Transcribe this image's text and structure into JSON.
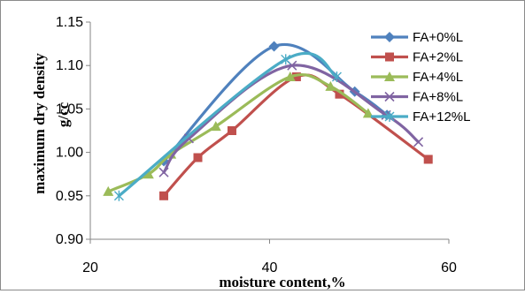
{
  "chart_data": {
    "type": "line",
    "title": "",
    "xlabel": "moisture content,%",
    "ylabel": "maximum dry density g/cc",
    "ylabel_lines": [
      "maximum dry density",
      "g/cc"
    ],
    "xlim": [
      20,
      60
    ],
    "ylim": [
      0.9,
      1.15
    ],
    "x_ticks": [
      20,
      40,
      60
    ],
    "x_tick_labels": [
      "20",
      "40",
      "60"
    ],
    "y_ticks": [
      0.9,
      0.95,
      1.0,
      1.05,
      1.1,
      1.15
    ],
    "y_tick_labels": [
      "0.90",
      "0.95",
      "1.00",
      "1.05",
      "1.10",
      "1.15"
    ],
    "grid": false,
    "legend_position": "right",
    "series": [
      {
        "name": "FA+0%L",
        "color": "#4F81BD",
        "marker": "diamond",
        "x": [
          28.2,
          40.5,
          49.5,
          53.1
        ],
        "y": [
          0.99,
          1.122,
          1.07,
          1.043
        ]
      },
      {
        "name": "FA+2%L",
        "color": "#C0504D",
        "marker": "square",
        "x": [
          28.2,
          32.0,
          35.8,
          43.0,
          47.8,
          57.7
        ],
        "y": [
          0.95,
          0.994,
          1.025,
          1.087,
          1.067,
          0.992
        ]
      },
      {
        "name": "FA+4%L",
        "color": "#9BBB59",
        "marker": "triangle",
        "x": [
          22.0,
          26.5,
          29.0,
          34.0,
          42.3,
          46.8,
          51.0
        ],
        "y": [
          0.955,
          0.975,
          0.998,
          1.03,
          1.087,
          1.076,
          1.045
        ]
      },
      {
        "name": "FA+8%L",
        "color": "#8064A2",
        "marker": "x",
        "x": [
          28.2,
          31.0,
          42.5,
          53.0,
          56.6
        ],
        "y": [
          0.977,
          1.016,
          1.1,
          1.043,
          1.012
        ]
      },
      {
        "name": "FA+12%L",
        "color": "#4BACC6",
        "marker": "asterisk",
        "x": [
          23.2,
          41.8,
          47.5
        ],
        "y": [
          0.95,
          1.107,
          1.087
        ]
      }
    ]
  }
}
